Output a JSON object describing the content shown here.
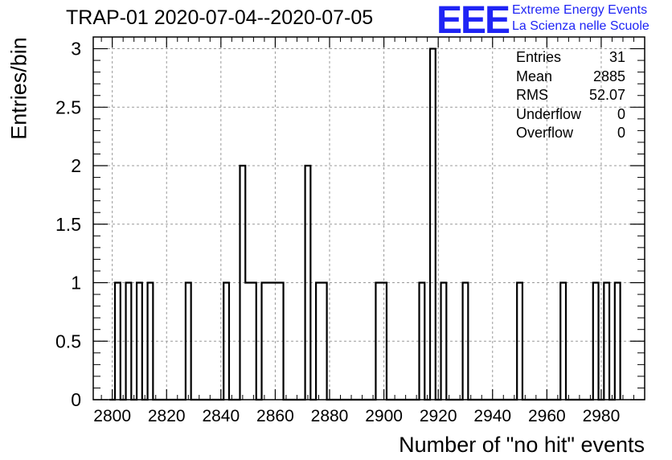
{
  "title": "TRAP-01 2020-07-04--2020-07-05",
  "logo": {
    "letters": "EEE",
    "line1": "Extreme Energy Events",
    "line2": "La Scienza nelle Scuole"
  },
  "colors": {
    "logo": "#1f24f5",
    "histogram": "#000000",
    "grid": "#999999"
  },
  "stats": {
    "entries_label": "Entries",
    "entries_value": "31",
    "mean_label": "Mean",
    "mean_value": "2885",
    "rms_label": "RMS",
    "rms_value": "52.07",
    "underflow_label": "Underflow",
    "underflow_value": "0",
    "overflow_label": "Overflow",
    "overflow_value": "0"
  },
  "chart_data": {
    "type": "bar",
    "title": "TRAP-01 2020-07-04--2020-07-05",
    "xlabel": "Number of \"no hit\" events",
    "ylabel": "Entries/bin",
    "xlim": [
      2793,
      2996
    ],
    "ylim": [
      0,
      3.1
    ],
    "bin_width": 2,
    "grid": true,
    "x_ticks": [
      "2800",
      "2820",
      "2840",
      "2860",
      "2880",
      "2900",
      "2920",
      "2940",
      "2960",
      "2980"
    ],
    "y_ticks": [
      "0",
      "0.5",
      "1",
      "1.5",
      "2",
      "2.5",
      "3"
    ],
    "bins": [
      {
        "x": 2801,
        "value": 1
      },
      {
        "x": 2805,
        "value": 1
      },
      {
        "x": 2809,
        "value": 1
      },
      {
        "x": 2813,
        "value": 1
      },
      {
        "x": 2827,
        "value": 1
      },
      {
        "x": 2841,
        "value": 1
      },
      {
        "x": 2847,
        "value": 2
      },
      {
        "x": 2849,
        "value": 1
      },
      {
        "x": 2851,
        "value": 1
      },
      {
        "x": 2855,
        "value": 1
      },
      {
        "x": 2857,
        "value": 1
      },
      {
        "x": 2859,
        "value": 1
      },
      {
        "x": 2861,
        "value": 1
      },
      {
        "x": 2871,
        "value": 2
      },
      {
        "x": 2875,
        "value": 1
      },
      {
        "x": 2877,
        "value": 1
      },
      {
        "x": 2897,
        "value": 1
      },
      {
        "x": 2899,
        "value": 1
      },
      {
        "x": 2913,
        "value": 1
      },
      {
        "x": 2917,
        "value": 3
      },
      {
        "x": 2921,
        "value": 1
      },
      {
        "x": 2929,
        "value": 1
      },
      {
        "x": 2949,
        "value": 1
      },
      {
        "x": 2965,
        "value": 1
      },
      {
        "x": 2977,
        "value": 1
      },
      {
        "x": 2981,
        "value": 1
      },
      {
        "x": 2985,
        "value": 1
      }
    ]
  }
}
